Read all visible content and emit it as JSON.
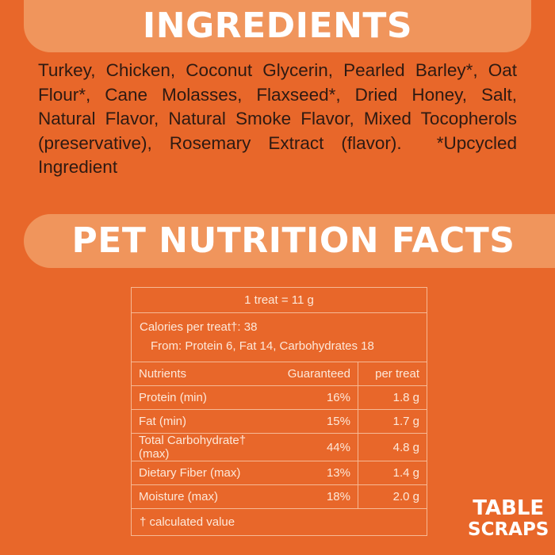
{
  "ingredients": {
    "heading": "INGREDIENTS",
    "text": "Turkey, Chicken, Coconut Glycerin, Pearled Barley*, Oat Flour*, Cane Molasses, Flaxseed*, Dried Honey, Salt, Natural Flavor, Natural Smoke Flavor, Mixed Tocopherols (preservative), Rosemary Extract (flavor).  *Upcycled Ingredient"
  },
  "nutrition": {
    "heading": "PET NUTRITION FACTS",
    "serving": "1 treat = 11 g",
    "calories": "Calories per treat†: 38",
    "from": "From: Protein 6, Fat 14, Carbohydrates 18",
    "columns": [
      "Nutrients",
      "Guaranteed",
      "per treat"
    ],
    "rows": [
      [
        "Protein (min)",
        "16%",
        "1.8 g"
      ],
      [
        "Fat (min)",
        "15%",
        "1.7 g"
      ],
      [
        "Total Carbohydrate† (max)",
        "44%",
        "4.8 g"
      ],
      [
        "Dietary Fiber (max)",
        "13%",
        "1.4 g"
      ],
      [
        "Moisture (max)",
        "18%",
        "2.0 g"
      ]
    ],
    "footnote": "† calculated value"
  },
  "logo": [
    "TABLE",
    "SCRAPS"
  ]
}
